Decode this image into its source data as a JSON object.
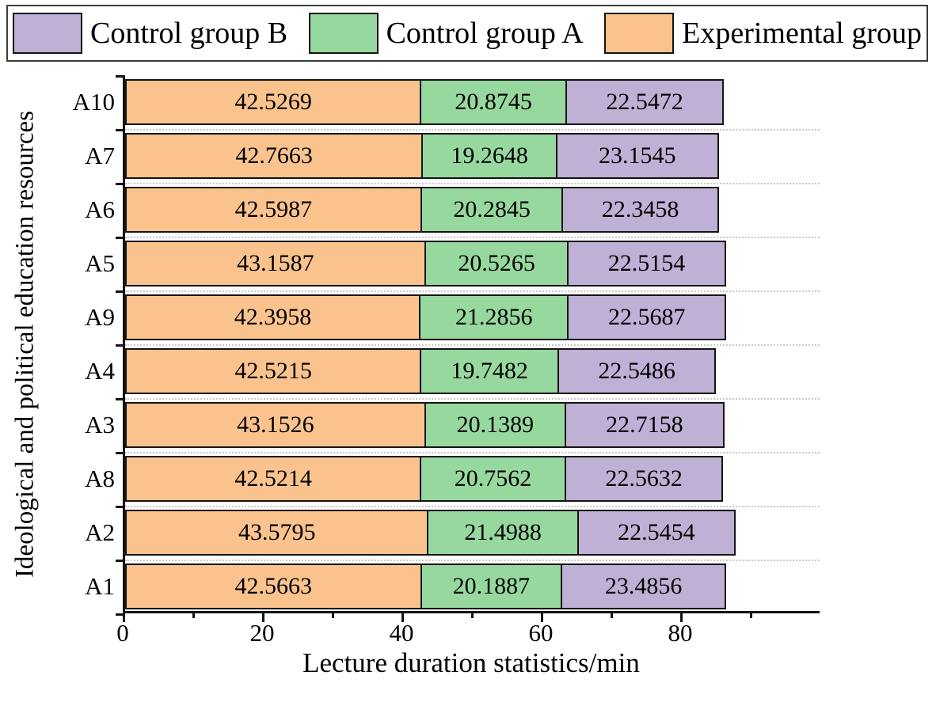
{
  "legend": {
    "items": [
      {
        "label": "Control group B",
        "color": "#bfb0d5"
      },
      {
        "label": "Control group A",
        "color": "#97d89f"
      },
      {
        "label": "Experimental group",
        "color": "#fac38d"
      }
    ]
  },
  "chart_data": {
    "type": "bar",
    "orientation": "horizontal",
    "stacked": true,
    "title": "",
    "xlabel": "Lecture duration statistics/min",
    "ylabel": "Ideological and political education resources",
    "xlim": [
      0,
      100
    ],
    "xticks": [
      0,
      20,
      40,
      60,
      80
    ],
    "xticks_minor": [
      10,
      30,
      50,
      70,
      90
    ],
    "grid": "horizontal-dotted",
    "legend_position": "top",
    "categories": [
      "A10",
      "A7",
      "A6",
      "A5",
      "A9",
      "A4",
      "A3",
      "A8",
      "A2",
      "A1"
    ],
    "series": [
      {
        "name": "Experimental group",
        "color": "#fac38d",
        "values": [
          42.5269,
          42.7663,
          42.5987,
          43.1587,
          42.3958,
          42.5215,
          43.1526,
          42.5214,
          43.5795,
          42.5663
        ]
      },
      {
        "name": "Control group A",
        "color": "#97d89f",
        "values": [
          20.8745,
          19.2648,
          20.2845,
          20.5265,
          21.2856,
          19.7482,
          20.1389,
          20.7562,
          21.4988,
          20.1887
        ]
      },
      {
        "name": "Control group B",
        "color": "#bfb0d5",
        "values": [
          22.5472,
          23.1545,
          22.3458,
          22.5154,
          22.5687,
          22.5486,
          22.7158,
          22.5632,
          22.5454,
          23.4856
        ]
      }
    ]
  }
}
